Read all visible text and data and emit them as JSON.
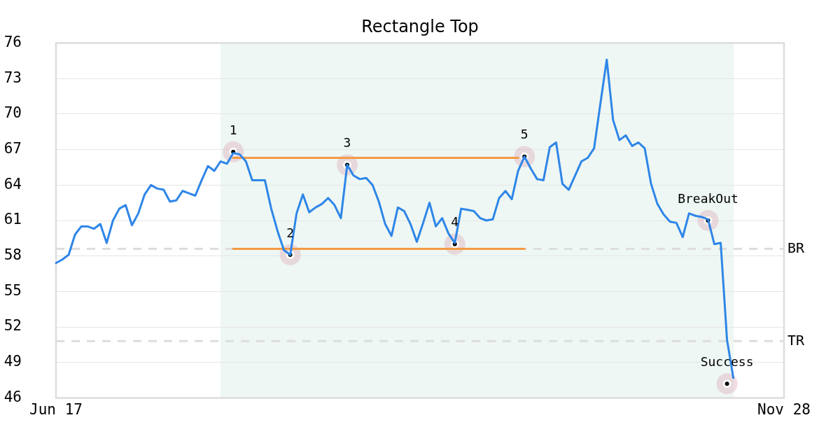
{
  "chart_data": {
    "type": "line",
    "title": "Rectangle Top",
    "categories": [
      "Jun 17",
      null,
      null,
      null,
      null,
      null,
      null,
      null,
      null,
      null,
      null,
      null,
      null,
      null,
      null,
      null,
      null,
      null,
      null,
      null,
      null,
      null,
      null,
      null,
      null,
      null,
      null,
      null,
      null,
      null,
      null,
      null,
      null,
      null,
      null,
      null,
      null,
      null,
      null,
      null,
      null,
      null,
      null,
      null,
      null,
      null,
      null,
      null,
      null,
      null,
      null,
      null,
      null,
      null,
      null,
      null,
      null,
      null,
      null,
      null,
      null,
      null,
      null,
      null,
      null,
      null,
      null,
      null,
      null,
      null,
      null,
      null,
      null,
      null,
      null,
      null,
      null,
      null,
      null,
      null,
      null,
      null,
      null,
      null,
      null,
      null,
      null,
      null,
      null,
      null,
      null,
      null,
      null,
      null,
      null,
      null,
      null,
      null,
      null,
      null,
      null,
      null,
      null,
      null,
      null,
      null,
      null,
      null,
      null,
      null,
      null,
      null,
      null,
      null,
      null,
      "Nov 28"
    ],
    "series": [
      {
        "color": "#2e86e8",
        "values": [
          57.4,
          57.7,
          58.1,
          59.8,
          60.5,
          60.5,
          60.3,
          60.7,
          59.1,
          61.0,
          62.0,
          62.3,
          60.6,
          61.6,
          63.2,
          64.0,
          63.7,
          63.6,
          62.6,
          62.7,
          63.5,
          63.3,
          63.1,
          64.4,
          65.6,
          65.2,
          66.0,
          65.8,
          66.7,
          66.6,
          66.0,
          64.4,
          64.4,
          64.4,
          62.0,
          60.1,
          58.5,
          58.1,
          61.6,
          63.2,
          61.7,
          62.1,
          62.4,
          62.9,
          62.3,
          61.2,
          65.7,
          64.8,
          64.5,
          64.6,
          64.0,
          62.6,
          60.7,
          59.7,
          62.1,
          61.8,
          60.7,
          59.2,
          60.8,
          62.5,
          60.5,
          61.2,
          59.9,
          59.1,
          62.0,
          61.9,
          61.8,
          61.2,
          61.0,
          61.1,
          62.9,
          63.5,
          62.8,
          65.2,
          66.4,
          65.4,
          64.5,
          64.4,
          67.2,
          67.6,
          64.1,
          63.6,
          64.8,
          66.0,
          66.3,
          67.1,
          70.9,
          74.6,
          69.5,
          67.8,
          68.2,
          67.3,
          67.6,
          67.1,
          64.1,
          62.4,
          61.5,
          60.9,
          60.8,
          59.6,
          61.6,
          61.4,
          61.3,
          61.1,
          59.0,
          59.1,
          50.9,
          47.7,
          null,
          null,
          null,
          null,
          null,
          null,
          null,
          null
        ]
      },
      {
        "color": "#f59a44",
        "values": [
          null,
          null,
          null,
          null,
          null,
          null,
          null,
          null,
          null,
          null,
          null,
          null,
          null,
          null,
          null,
          null,
          null,
          null,
          null,
          null,
          null,
          null,
          null,
          null,
          null,
          null,
          null,
          null,
          66.3,
          66.3,
          66.3,
          66.3,
          66.3,
          66.3,
          66.3,
          66.3,
          66.3,
          66.3,
          66.3,
          66.3,
          66.3,
          66.3,
          66.3,
          66.3,
          66.3,
          66.3,
          66.3,
          66.3,
          66.3,
          66.3,
          66.3,
          66.3,
          66.3,
          66.3,
          66.3,
          66.3,
          66.3,
          66.3,
          66.3,
          66.3,
          66.3,
          66.3,
          66.3,
          66.3,
          66.3,
          66.3,
          66.3,
          66.3,
          66.3,
          66.3,
          66.3,
          66.3,
          66.3,
          66.3,
          null,
          null,
          null,
          null,
          null,
          null,
          null,
          null,
          null,
          null,
          null,
          null,
          null,
          null,
          null,
          null,
          null,
          null,
          null,
          null,
          null,
          null,
          null,
          null,
          null,
          null,
          null,
          null,
          null,
          null,
          null,
          null,
          null,
          null,
          null,
          null,
          null,
          null,
          null,
          null,
          null,
          null
        ]
      },
      {
        "color": "#f59a44",
        "values": [
          null,
          null,
          null,
          null,
          null,
          null,
          null,
          null,
          null,
          null,
          null,
          null,
          null,
          null,
          null,
          null,
          null,
          null,
          null,
          null,
          null,
          null,
          null,
          null,
          null,
          null,
          null,
          null,
          58.6,
          58.6,
          58.6,
          58.6,
          58.6,
          58.6,
          58.6,
          58.6,
          58.6,
          58.6,
          58.6,
          58.6,
          58.6,
          58.6,
          58.6,
          58.6,
          58.6,
          58.6,
          58.6,
          58.6,
          58.6,
          58.6,
          58.6,
          58.6,
          58.6,
          58.6,
          58.6,
          58.6,
          58.6,
          58.6,
          58.6,
          58.6,
          58.6,
          58.6,
          58.6,
          58.6,
          58.6,
          58.6,
          58.6,
          58.6,
          58.6,
          58.6,
          58.6,
          58.6,
          58.6,
          58.6,
          58.6,
          null,
          null,
          null,
          null,
          null,
          null,
          null,
          null,
          null,
          null,
          null,
          null,
          null,
          null,
          null,
          null,
          null,
          null,
          null,
          null,
          null,
          null,
          null,
          null,
          null,
          null,
          null,
          null,
          null,
          null,
          null,
          null,
          null,
          null,
          null,
          null,
          null,
          null,
          null,
          null,
          null
        ]
      },
      {
        "type": "scatter",
        "name": "1",
        "color": "#000000",
        "marker": "circle",
        "values": [
          null,
          null,
          null,
          null,
          null,
          null,
          null,
          null,
          null,
          null,
          null,
          null,
          null,
          null,
          null,
          null,
          null,
          null,
          null,
          null,
          null,
          null,
          null,
          null,
          null,
          null,
          null,
          null,
          66.8,
          null,
          null,
          null,
          null,
          null,
          null,
          null,
          null,
          null,
          null,
          null,
          null,
          null,
          null,
          null,
          null,
          null,
          null,
          null,
          null,
          null,
          null,
          null,
          null,
          null,
          null,
          null,
          null,
          null,
          null,
          null,
          null,
          null,
          null,
          null,
          null,
          null,
          null,
          null,
          null,
          null,
          null,
          null,
          null,
          null,
          null,
          null,
          null,
          null,
          null,
          null,
          null,
          null,
          null,
          null,
          null,
          null,
          null,
          null,
          null,
          null,
          null,
          null,
          null,
          null,
          null,
          null,
          null,
          null,
          null,
          null,
          null,
          null,
          null,
          null,
          null,
          null,
          null,
          null,
          null,
          null,
          null,
          null,
          null,
          null,
          null,
          null
        ]
      },
      {
        "type": "scatter",
        "name": "2",
        "color": "#000000",
        "marker": "circle",
        "values": [
          null,
          null,
          null,
          null,
          null,
          null,
          null,
          null,
          null,
          null,
          null,
          null,
          null,
          null,
          null,
          null,
          null,
          null,
          null,
          null,
          null,
          null,
          null,
          null,
          null,
          null,
          null,
          null,
          null,
          null,
          null,
          null,
          null,
          null,
          null,
          null,
          null,
          58.1,
          null,
          null,
          null,
          null,
          null,
          null,
          null,
          null,
          null,
          null,
          null,
          null,
          null,
          null,
          null,
          null,
          null,
          null,
          null,
          null,
          null,
          null,
          null,
          null,
          null,
          null,
          null,
          null,
          null,
          null,
          null,
          null,
          null,
          null,
          null,
          null,
          null,
          null,
          null,
          null,
          null,
          null,
          null,
          null,
          null,
          null,
          null,
          null,
          null,
          null,
          null,
          null,
          null,
          null,
          null,
          null,
          null,
          null,
          null,
          null,
          null,
          null,
          null,
          null,
          null,
          null,
          null,
          null,
          null,
          null,
          null,
          null,
          null,
          null,
          null,
          null,
          null,
          null
        ]
      },
      {
        "type": "scatter",
        "name": "3",
        "color": "#000000",
        "marker": "circle",
        "values": [
          null,
          null,
          null,
          null,
          null,
          null,
          null,
          null,
          null,
          null,
          null,
          null,
          null,
          null,
          null,
          null,
          null,
          null,
          null,
          null,
          null,
          null,
          null,
          null,
          null,
          null,
          null,
          null,
          null,
          null,
          null,
          null,
          null,
          null,
          null,
          null,
          null,
          null,
          null,
          null,
          null,
          null,
          null,
          null,
          null,
          null,
          65.7,
          null,
          null,
          null,
          null,
          null,
          null,
          null,
          null,
          null,
          null,
          null,
          null,
          null,
          null,
          null,
          null,
          null,
          null,
          null,
          null,
          null,
          null,
          null,
          null,
          null,
          null,
          null,
          null,
          null,
          null,
          null,
          null,
          null,
          null,
          null,
          null,
          null,
          null,
          null,
          null,
          null,
          null,
          null,
          null,
          null,
          null,
          null,
          null,
          null,
          null,
          null,
          null,
          null,
          null,
          null,
          null,
          null,
          null,
          null,
          null,
          null,
          null,
          null,
          null,
          null,
          null,
          null,
          null,
          null
        ]
      },
      {
        "type": "scatter",
        "name": "4",
        "color": "#000000",
        "marker": "circle",
        "values": [
          null,
          null,
          null,
          null,
          null,
          null,
          null,
          null,
          null,
          null,
          null,
          null,
          null,
          null,
          null,
          null,
          null,
          null,
          null,
          null,
          null,
          null,
          null,
          null,
          null,
          null,
          null,
          null,
          null,
          null,
          null,
          null,
          null,
          null,
          null,
          null,
          null,
          null,
          null,
          null,
          null,
          null,
          null,
          null,
          null,
          null,
          null,
          null,
          null,
          null,
          null,
          null,
          null,
          null,
          null,
          null,
          null,
          null,
          null,
          null,
          null,
          null,
          null,
          59.0,
          null,
          null,
          null,
          null,
          null,
          null,
          null,
          null,
          null,
          null,
          null,
          null,
          null,
          null,
          null,
          null,
          null,
          null,
          null,
          null,
          null,
          null,
          null,
          null,
          null,
          null,
          null,
          null,
          null,
          null,
          null,
          null,
          null,
          null,
          null,
          null,
          null,
          null,
          null,
          null,
          null,
          null,
          null,
          null,
          null,
          null,
          null,
          null,
          null,
          null,
          null,
          null
        ]
      },
      {
        "type": "scatter",
        "name": "5",
        "color": "#000000",
        "marker": "circle",
        "values": [
          null,
          null,
          null,
          null,
          null,
          null,
          null,
          null,
          null,
          null,
          null,
          null,
          null,
          null,
          null,
          null,
          null,
          null,
          null,
          null,
          null,
          null,
          null,
          null,
          null,
          null,
          null,
          null,
          null,
          null,
          null,
          null,
          null,
          null,
          null,
          null,
          null,
          null,
          null,
          null,
          null,
          null,
          null,
          null,
          null,
          null,
          null,
          null,
          null,
          null,
          null,
          null,
          null,
          null,
          null,
          null,
          null,
          null,
          null,
          null,
          null,
          null,
          null,
          null,
          null,
          null,
          null,
          null,
          null,
          null,
          null,
          null,
          null,
          null,
          66.4,
          null,
          null,
          null,
          null,
          null,
          null,
          null,
          null,
          null,
          null,
          null,
          null,
          null,
          null,
          null,
          null,
          null,
          null,
          null,
          null,
          null,
          null,
          null,
          null,
          null,
          null,
          null,
          null,
          null,
          null,
          null,
          null,
          null,
          null,
          null,
          null,
          null,
          null,
          null,
          null,
          null
        ]
      },
      {
        "type": "scatter",
        "name": "BreakOut",
        "color": "#000000",
        "marker": "circle",
        "values": [
          null,
          null,
          null,
          null,
          null,
          null,
          null,
          null,
          null,
          null,
          null,
          null,
          null,
          null,
          null,
          null,
          null,
          null,
          null,
          null,
          null,
          null,
          null,
          null,
          null,
          null,
          null,
          null,
          null,
          null,
          null,
          null,
          null,
          null,
          null,
          null,
          null,
          null,
          null,
          null,
          null,
          null,
          null,
          null,
          null,
          null,
          null,
          null,
          null,
          null,
          null,
          null,
          null,
          null,
          null,
          null,
          null,
          null,
          null,
          null,
          null,
          null,
          null,
          null,
          null,
          null,
          null,
          null,
          null,
          null,
          null,
          null,
          null,
          null,
          null,
          null,
          null,
          null,
          null,
          null,
          null,
          null,
          null,
          null,
          null,
          null,
          null,
          null,
          null,
          null,
          null,
          null,
          null,
          null,
          null,
          null,
          null,
          null,
          null,
          null,
          null,
          null,
          null,
          61.0,
          null,
          null,
          null,
          null,
          null,
          null,
          null,
          null,
          null,
          null,
          null,
          null
        ]
      },
      {
        "type": "scatter",
        "name": "Success",
        "color": "#000000",
        "marker": "circle",
        "values": [
          null,
          null,
          null,
          null,
          null,
          null,
          null,
          null,
          null,
          null,
          null,
          null,
          null,
          null,
          null,
          null,
          null,
          null,
          null,
          null,
          null,
          null,
          null,
          null,
          null,
          null,
          null,
          null,
          null,
          null,
          null,
          null,
          null,
          null,
          null,
          null,
          null,
          null,
          null,
          null,
          null,
          null,
          null,
          null,
          null,
          null,
          null,
          null,
          null,
          null,
          null,
          null,
          null,
          null,
          null,
          null,
          null,
          null,
          null,
          null,
          null,
          null,
          null,
          null,
          null,
          null,
          null,
          null,
          null,
          null,
          null,
          null,
          null,
          null,
          null,
          null,
          null,
          null,
          null,
          null,
          null,
          null,
          null,
          null,
          null,
          null,
          null,
          null,
          null,
          null,
          null,
          null,
          null,
          null,
          null,
          null,
          null,
          null,
          null,
          null,
          null,
          null,
          null,
          null,
          null,
          null,
          47.2,
          null,
          null,
          null,
          null,
          null,
          null,
          null,
          null,
          null
        ]
      }
    ],
    "ylim": [
      46,
      76
    ],
    "yticks": [
      46,
      49,
      52,
      55,
      58,
      61,
      64,
      67,
      70,
      73,
      76
    ],
    "grid": "y",
    "ref_lines": [
      {
        "axis": "y",
        "value": 58.6,
        "label": "BR",
        "color": "#dddddd",
        "line_style": "dashed"
      },
      {
        "axis": "y",
        "value": 50.8,
        "label": "TR",
        "color": "#dddddd",
        "line_style": "dashed"
      }
    ]
  }
}
